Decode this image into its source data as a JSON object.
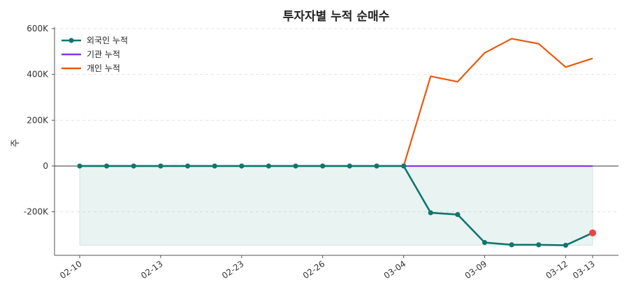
{
  "chart_data": {
    "type": "line",
    "title": "투자자별 누적 순매수",
    "xlabel": "",
    "ylabel": "주",
    "ylim": [
      -390000,
      600000
    ],
    "y_ticks": [
      {
        "value": -200000,
        "label": "-200K"
      },
      {
        "value": 0,
        "label": "0"
      },
      {
        "value": 200000,
        "label": "200K"
      },
      {
        "value": 400000,
        "label": "400K"
      },
      {
        "value": 600000,
        "label": "600K"
      }
    ],
    "x_ticks": [
      {
        "index": 0,
        "label": "02-10"
      },
      {
        "index": 3,
        "label": "02-13"
      },
      {
        "index": 6,
        "label": "02-23"
      },
      {
        "index": 9,
        "label": "02-26"
      },
      {
        "index": 12,
        "label": "03-04"
      },
      {
        "index": 15,
        "label": "03-09"
      },
      {
        "index": 18,
        "label": "03-12"
      },
      {
        "index": 19,
        "label": "03-13"
      }
    ],
    "x_count": 20,
    "legend_position": "top-left",
    "grid": "horizontal dashed",
    "series": [
      {
        "name": "외국인 누적",
        "color": "#0f766e",
        "markers": true,
        "fill_area": true,
        "values": [
          0,
          0,
          0,
          0,
          0,
          0,
          0,
          0,
          0,
          0,
          0,
          0,
          0,
          -204000,
          -212000,
          -334000,
          -344000,
          -344000,
          -346000,
          -292000
        ]
      },
      {
        "name": "기관 누적",
        "color": "#7c3aed",
        "markers": false,
        "fill_area": false,
        "values": [
          0,
          0,
          0,
          0,
          0,
          0,
          0,
          0,
          0,
          0,
          0,
          0,
          0,
          0,
          0,
          0,
          0,
          0,
          0,
          0
        ]
      },
      {
        "name": "개인 누적",
        "color": "#ea580c",
        "markers": false,
        "fill_area": false,
        "start_index": 12,
        "values": [
          0,
          392000,
          368000,
          494000,
          556000,
          534000,
          432000,
          470000
        ]
      }
    ],
    "highlight_point": {
      "series": "외국인 누적",
      "index": 19,
      "color": "#ef4444"
    }
  }
}
